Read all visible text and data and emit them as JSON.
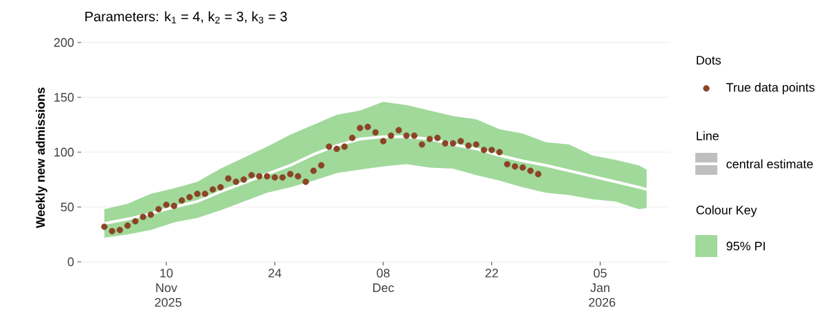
{
  "chart_data": {
    "type": "line",
    "title": "Parameters: k$_{1}$ = 4, k$_{2}$ = 3, k$_{3}$ = 3",
    "ylabel": "Weekly new admissions",
    "xlim": [
      "2025-10-30",
      "2026-01-14"
    ],
    "xticks": [
      {
        "value": "2025-11-10",
        "label": "10 Nov 2025"
      },
      {
        "value": "2025-11-24",
        "label": "24"
      },
      {
        "value": "2025-12-08",
        "label": "08 Dec"
      },
      {
        "value": "2025-12-22",
        "label": "22"
      },
      {
        "value": "2026-01-05",
        "label": "05 Jan 2026"
      }
    ],
    "ylim": [
      0,
      200
    ],
    "yticks": [
      0,
      50,
      100,
      150,
      200
    ],
    "grid": "y",
    "legend": "right",
    "annotations": [
      "Dots",
      "Line",
      "Colour Key",
      "95% PI"
    ],
    "series": [
      {
        "name": "True data points",
        "type": "scatter",
        "marker": "circle",
        "color": "#8b4426",
        "x": [
          "2025-11-02",
          "2025-11-03",
          "2025-11-04",
          "2025-11-05",
          "2025-11-06",
          "2025-11-07",
          "2025-11-08",
          "2025-11-09",
          "2025-11-10",
          "2025-11-11",
          "2025-11-12",
          "2025-11-13",
          "2025-11-14",
          "2025-11-15",
          "2025-11-16",
          "2025-11-17",
          "2025-11-18",
          "2025-11-19",
          "2025-11-20",
          "2025-11-21",
          "2025-11-22",
          "2025-11-23",
          "2025-11-24",
          "2025-11-25",
          "2025-11-26",
          "2025-11-27",
          "2025-11-28",
          "2025-11-29",
          "2025-11-30",
          "2025-12-01",
          "2025-12-02",
          "2025-12-03",
          "2025-12-04",
          "2025-12-05",
          "2025-12-06",
          "2025-12-07",
          "2025-12-08",
          "2025-12-09",
          "2025-12-10",
          "2025-12-11",
          "2025-12-12",
          "2025-12-13",
          "2025-12-14",
          "2025-12-15",
          "2025-12-16",
          "2025-12-17",
          "2025-12-18",
          "2025-12-19",
          "2025-12-20",
          "2025-12-21",
          "2025-12-22",
          "2025-12-23",
          "2025-12-24",
          "2025-12-25",
          "2025-12-26",
          "2025-12-27",
          "2025-12-28"
        ],
        "values": [
          32,
          28,
          29,
          33,
          37,
          41,
          43,
          48,
          52,
          51,
          56,
          59,
          62,
          62,
          66,
          68,
          76,
          73,
          75,
          79,
          78,
          78,
          77,
          77,
          80,
          78,
          73,
          83,
          88,
          105,
          103,
          105,
          113,
          122,
          123,
          118,
          110,
          115,
          120,
          115,
          115,
          107,
          112,
          113,
          108,
          108,
          110,
          106,
          107,
          102,
          102,
          100,
          89,
          87,
          86,
          83,
          80
        ]
      },
      {
        "name": "central estimate",
        "color": "#ffffff",
        "x": [
          "2025-11-02",
          "2025-11-05",
          "2025-11-08",
          "2025-11-11",
          "2025-11-14",
          "2025-11-17",
          "2025-11-20",
          "2025-11-23",
          "2025-11-26",
          "2025-11-29",
          "2025-12-02",
          "2025-12-05",
          "2025-12-08",
          "2025-12-11",
          "2025-12-14",
          "2025-12-17",
          "2025-12-20",
          "2025-12-23",
          "2025-12-26",
          "2025-12-29",
          "2026-01-01",
          "2026-01-04",
          "2026-01-07",
          "2026-01-10",
          "2026-01-11"
        ],
        "values": [
          35,
          39,
          44,
          50,
          55,
          64,
          72,
          80,
          88,
          98,
          106,
          112,
          114,
          114,
          112,
          107,
          103,
          97,
          92,
          88,
          83,
          78,
          73,
          68,
          66
        ],
        "lower": [
          22,
          25,
          29,
          36,
          40,
          47,
          55,
          63,
          68,
          74,
          81,
          84,
          87,
          89,
          86,
          85,
          79,
          74,
          68,
          63,
          61,
          57,
          55,
          48,
          49
        ],
        "upper": [
          48,
          53,
          62,
          67,
          73,
          85,
          95,
          105,
          116,
          125,
          134,
          138,
          146,
          143,
          138,
          133,
          130,
          121,
          117,
          109,
          107,
          97,
          93,
          88,
          84
        ]
      }
    ]
  }
}
